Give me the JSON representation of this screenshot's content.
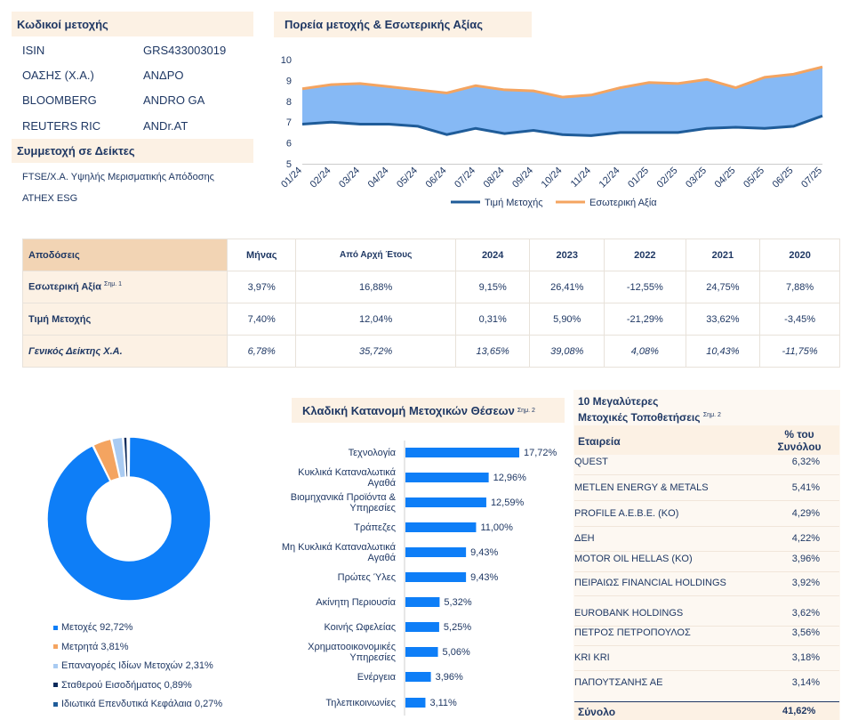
{
  "codes": {
    "title": "Κωδικοί μετοχής",
    "rows": [
      {
        "label": "ISIN",
        "value": "GRS433003019"
      },
      {
        "label": "ΟΑΣΗΣ (Χ.Α.)",
        "value": "ΑΝΔΡΟ"
      },
      {
        "label": "BLOOMBERG",
        "value": "ANDRO GA"
      },
      {
        "label": "REUTERS RIC",
        "value": "ANDr.AT"
      }
    ]
  },
  "indices": {
    "title": "Συμμετοχή σε Δείκτες",
    "items": [
      "FTSE/Χ.Α. Υψηλής Μερισματικής Απόδοσης",
      "ATHEX ESG"
    ]
  },
  "performance": {
    "title": "Αποδόσεις",
    "columns": [
      "Μήνας",
      "Από Αρχή Έτους",
      "2024",
      "2023",
      "2022",
      "2021",
      "2020"
    ],
    "rows": [
      {
        "label": "Εσωτερική Αξία",
        "note": "Σημ. 1",
        "values": [
          "3,97%",
          "16,88%",
          "9,15%",
          "26,41%",
          "-12,55%",
          "24,75%",
          "7,88%"
        ]
      },
      {
        "label": "Τιμή Μετοχής",
        "note": "",
        "values": [
          "7,40%",
          "12,04%",
          "0,31%",
          "5,90%",
          "-21,29%",
          "33,62%",
          "-3,45%"
        ]
      },
      {
        "label": "Γενικός Δείκτης Χ.Α.",
        "note": "",
        "values": [
          "6,78%",
          "35,72%",
          "13,65%",
          "39,08%",
          "4,08%",
          "10,43%",
          "-11,75%"
        ]
      }
    ]
  },
  "holdings": {
    "title_line1": "10 Μεγαλύτερες",
    "title_line2": "Μετοχικές Τοποθετήσεις",
    "note": "Σημ. 2",
    "col_company": "Εταιρεία",
    "col_pct_line1": "% του",
    "col_pct_line2": "Συνόλου",
    "rows": [
      {
        "name": "QUEST",
        "pct": "6,32%"
      },
      {
        "name": "METLEN ENERGY & METALS",
        "pct": "5,41%"
      },
      {
        "name": "PROFILE A.E.B.E. (KO)",
        "pct": "4,29%"
      },
      {
        "name": "ΔΕΗ",
        "pct": "4,22%"
      },
      {
        "name": "MOTOR OIL HELLAS (KO)",
        "pct": "3,96%"
      },
      {
        "name": "ΠΕΙΡΑΙΩΣ FINANCIAL HOLDINGS",
        "pct": "3,92%"
      },
      {
        "name": "EUROBANK HOLDINGS",
        "pct": "3,62%"
      },
      {
        "name": "ΠΕΤΡΟΣ ΠΕΤΡΟΠΟΥΛΟΣ",
        "pct": "3,56%"
      },
      {
        "name": "KRI KRI",
        "pct": "3,18%"
      },
      {
        "name": "ΠΑΠΟΥΤΣΑΝΗΣ ΑΕ",
        "pct": "3,14%"
      }
    ],
    "total_label": "Σύνολο",
    "total_pct": "41,62%"
  },
  "colors": {
    "dark_blue": "#1f5c99",
    "orange": "#f4a460",
    "area_blue": "#86b9f5",
    "bar_blue": "#0e7ef7"
  },
  "chart_data": [
    {
      "type": "area",
      "title": "Πορεία μετοχής & Εσωτερικής Αξίας",
      "categories": [
        "01/24",
        "02/24",
        "03/24",
        "04/24",
        "05/24",
        "06/24",
        "07/24",
        "08/24",
        "09/24",
        "10/24",
        "11/24",
        "12/24",
        "01/25",
        "02/25",
        "03/25",
        "04/25",
        "05/25",
        "06/25",
        "07/25"
      ],
      "ylim": [
        5,
        10
      ],
      "yticks": [
        5,
        6,
        7,
        8,
        9,
        10
      ],
      "series": [
        {
          "name": "Τιμή Μετοχής",
          "values": [
            6.9,
            7.0,
            6.9,
            6.9,
            6.8,
            6.4,
            6.7,
            6.45,
            6.6,
            6.4,
            6.35,
            6.5,
            6.5,
            6.5,
            6.7,
            6.75,
            6.7,
            6.8,
            7.3
          ]
        },
        {
          "name": "Εσωτερική Αξία",
          "values": [
            8.6,
            8.8,
            8.85,
            8.7,
            8.55,
            8.4,
            8.75,
            8.55,
            8.5,
            8.2,
            8.3,
            8.65,
            8.9,
            8.85,
            9.05,
            8.65,
            9.15,
            9.3,
            9.65
          ]
        }
      ],
      "legend": "bottom",
      "grid": false
    },
    {
      "type": "pie",
      "labels": [
        "Μετοχές 92,72%",
        "Μετρητά 3,81%",
        "Επαναγορές Ιδίων Μετοχών 2,31%",
        "Σταθερού Εισοδήματος 0,89%",
        "Ιδιωτικά Επενδυτικά Κεφάλαια 0,27%"
      ],
      "values": [
        92.72,
        3.81,
        2.31,
        0.89,
        0.27
      ],
      "colors": [
        "#0e7ef7",
        "#f4a460",
        "#a9cbf2",
        "#0b2a5b",
        "#1f5c99"
      ],
      "legend": "bottom"
    },
    {
      "type": "bar",
      "orientation": "horizontal",
      "title": "Κλαδική Κατανομή Μετοχικών Θέσεων",
      "title_note": "Σημ. 2",
      "categories": [
        "Τεχνολογία",
        "Κυκλικά Καταναλωτικά Αγαθά",
        "Βιομηχανικά Προϊόντα & Υπηρεσίες",
        "Τράπεζες",
        "Μη Κυκλικά Καταναλωτικά Αγαθά",
        "Πρώτες Ύλες",
        "Ακίνητη Περιουσία",
        "Κοινής Ωφελείας",
        "Χρηματοοικονομικές Υπηρεσίες",
        "Ενέργεια",
        "Τηλεπικοινωνίες"
      ],
      "values": [
        17.72,
        12.96,
        12.59,
        11.0,
        9.43,
        9.43,
        5.32,
        5.25,
        5.06,
        3.96,
        3.11
      ],
      "value_labels": [
        "17,72%",
        "12,96%",
        "12,59%",
        "11,00%",
        "9,43%",
        "9,43%",
        "5,32%",
        "5,25%",
        "5,06%",
        "3,96%",
        "3,11%"
      ]
    }
  ]
}
